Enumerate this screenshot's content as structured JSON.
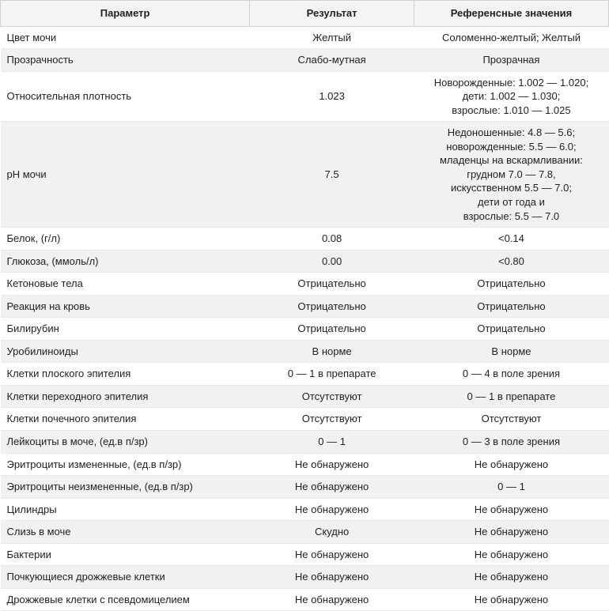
{
  "table": {
    "columns": [
      "Параметр",
      "Результат",
      "Референсные значения"
    ],
    "col_widths": [
      "41%",
      "27%",
      "32%"
    ],
    "header_bg": "#f4f4f4",
    "stripe_bg": "#f1f1f1",
    "plain_bg": "#ffffff",
    "border_color": "#d0d0d0",
    "row_border_color": "#e8e8e8",
    "font_size": 13,
    "rows": [
      {
        "param": "Цвет мочи",
        "result": "Желтый",
        "ref": "Соломенно-желтый; Желтый",
        "stripe": false
      },
      {
        "param": "Прозрачность",
        "result": "Слабо-мутная",
        "ref": "Прозрачная",
        "stripe": true
      },
      {
        "param": "Относительная плотность",
        "result": "1.023",
        "ref": "Новорожденные: 1.002 — 1.020;\nдети: 1.002 — 1.030;\nвзрослые: 1.010 — 1.025",
        "stripe": false
      },
      {
        "param": "pH мочи",
        "result": "7.5",
        "ref": "Недоношенные: 4.8 — 5.6;\nноворожденные: 5.5 — 6.0;\nмладенцы на вскармливании:\nгрудном 7.0 — 7.8,\nискусственном 5.5 — 7.0;\nдети от года и\nвзрослые: 5.5 — 7.0",
        "stripe": true
      },
      {
        "param": "Белок, (г/л)",
        "result": "0.08",
        "ref": "<0.14",
        "stripe": false
      },
      {
        "param": "Глюкоза, (ммоль/л)",
        "result": "0.00",
        "ref": "<0.80",
        "stripe": true
      },
      {
        "param": "Кетоновые тела",
        "result": "Отрицательно",
        "ref": "Отрицательно",
        "stripe": false
      },
      {
        "param": "Реакция на кровь",
        "result": "Отрицательно",
        "ref": "Отрицательно",
        "stripe": true
      },
      {
        "param": "Билирубин",
        "result": "Отрицательно",
        "ref": "Отрицательно",
        "stripe": false
      },
      {
        "param": "Уробилиноиды",
        "result": "В норме",
        "ref": "В норме",
        "stripe": true
      },
      {
        "param": "Клетки плоского эпителия",
        "result": "0 — 1 в препарате",
        "ref": "0 — 4 в поле зрения",
        "stripe": false
      },
      {
        "param": "Клетки переходного эпителия",
        "result": "Отсутствуют",
        "ref": "0 — 1 в препарате",
        "stripe": true
      },
      {
        "param": "Клетки почечного эпителия",
        "result": "Отсутствуют",
        "ref": "Отсутствуют",
        "stripe": false
      },
      {
        "param": "Лейкоциты в моче, (ед.в п/зр)",
        "result": "0 — 1",
        "ref": "0 — 3 в поле зрения",
        "stripe": true
      },
      {
        "param": "Эритроциты измененные, (ед.в п/зр)",
        "result": "Не обнаружено",
        "ref": "Не обнаружено",
        "stripe": false
      },
      {
        "param": "Эритроциты неизмененные, (ед.в п/зр)",
        "result": "Не обнаружено",
        "ref": "0 — 1",
        "stripe": true
      },
      {
        "param": "Цилиндры",
        "result": "Не обнаружено",
        "ref": "Не обнаружено",
        "stripe": false
      },
      {
        "param": "Слизь в моче",
        "result": "Скудно",
        "ref": "Не обнаружено",
        "stripe": true
      },
      {
        "param": "Бактерии",
        "result": "Не обнаружено",
        "ref": "Не обнаружено",
        "stripe": false
      },
      {
        "param": "Почкующиеся дрожжевые клетки",
        "result": "Не обнаружено",
        "ref": "Не обнаружено",
        "stripe": true
      },
      {
        "param": "Дрожжевые клетки с псевдомицелием",
        "result": "Не обнаружено",
        "ref": "Не обнаружено",
        "stripe": false
      }
    ]
  }
}
